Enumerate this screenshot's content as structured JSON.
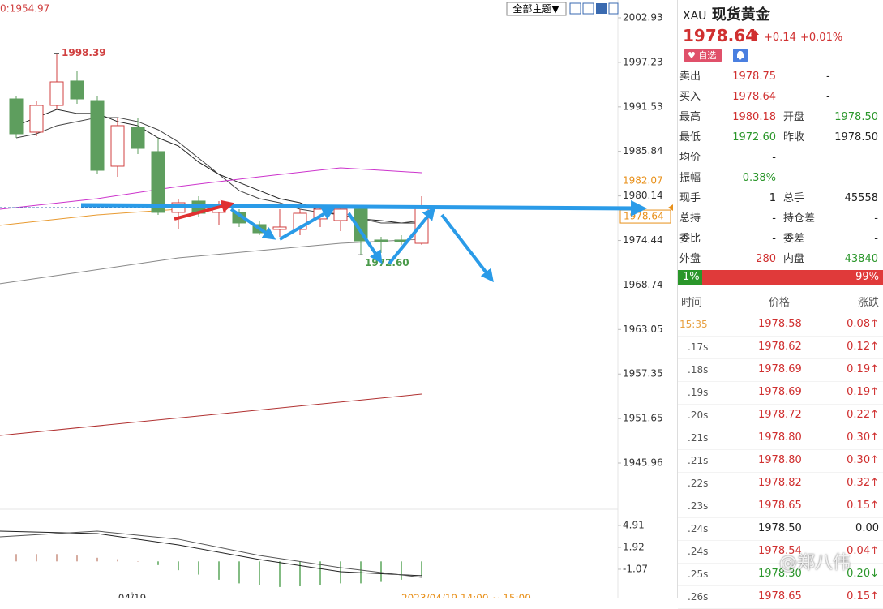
{
  "chart_data": [
    {
      "type": "candlestick",
      "legend_text": "0:1954.97",
      "x": [
        0,
        1,
        2,
        3,
        4,
        5,
        6,
        7,
        8,
        9,
        10,
        11,
        12,
        13,
        14,
        15,
        16,
        17,
        18,
        19,
        20
      ],
      "open": [
        1992.55,
        1988.3,
        1991.72,
        1994.84,
        1992.34,
        1983.94,
        1988.92,
        1985.81,
        1978.03,
        1979.48,
        1978.03,
        1978.03,
        1976.47,
        1975.85,
        1975.85,
        1977.2,
        1976.99,
        1978.44,
        1974.5,
        1974.5,
        1974.08
      ],
      "high": [
        1992.97,
        1992.24,
        1998.39,
        1996.08,
        1992.97,
        1990.17,
        1990.17,
        1987.57,
        1979.79,
        1980.1,
        1979.48,
        1978.44,
        1976.99,
        1978.44,
        1978.44,
        1978.75,
        1978.75,
        1978.75,
        1974.91,
        1975.12,
        1980.1
      ],
      "low": [
        1987.57,
        1987.78,
        1991.2,
        1991.93,
        1982.9,
        1982.59,
        1985.5,
        1977.71,
        1975.95,
        1977.4,
        1976.37,
        1976.16,
        1975.12,
        1974.91,
        1975.12,
        1976.16,
        1975.64,
        1972.6,
        1972.84,
        1973.88,
        1973.88
      ],
      "close": [
        1988.09,
        1991.72,
        1994.73,
        1992.55,
        1983.42,
        1989.13,
        1986.22,
        1978.03,
        1979.27,
        1977.92,
        1979.06,
        1976.68,
        1975.43,
        1976.16,
        1977.92,
        1978.44,
        1978.44,
        1974.39,
        1974.29,
        1974.29,
        1978.64
      ],
      "up_color": "#d04040",
      "down_color": "#5e9e5e",
      "lines": [
        {
          "color": "#222222",
          "x": [
            0,
            1,
            2,
            3,
            4,
            5,
            6,
            7,
            8,
            9,
            10,
            11,
            12,
            13,
            14,
            15,
            16,
            17,
            18,
            19,
            20
          ],
          "values": [
            1989.13,
            1990.17,
            1991.2,
            1990.69,
            1990.69,
            1989.65,
            1989.13,
            1987.57,
            1986.53,
            1984.46,
            1982.9,
            1981.86,
            1980.82,
            1979.79,
            1979.27,
            1978.23,
            1977.71,
            1977.19,
            1976.99,
            1976.68,
            1976.68
          ]
        },
        {
          "color": "#444444",
          "x": [
            0,
            1,
            2,
            3,
            4,
            5,
            6,
            7,
            8,
            9,
            10,
            11,
            12,
            13,
            14,
            15,
            16,
            17,
            18,
            19,
            20
          ],
          "values": [
            1987.57,
            1988.09,
            1989.13,
            1989.65,
            1990.17,
            1990.17,
            1989.65,
            1988.61,
            1987.05,
            1984.98,
            1982.9,
            1980.82,
            1979.79,
            1979.27,
            1978.44,
            1978.03,
            1977.71,
            1977.2,
            1976.68,
            1976.68,
            1976.99
          ]
        },
        {
          "color": "#cc33cc",
          "x": [
            -0.8,
            4,
            8,
            12,
            16,
            20
          ],
          "values": [
            1978.44,
            1979.79,
            1981.35,
            1982.59,
            1983.73,
            1983.11
          ]
        },
        {
          "color": "#888888",
          "x": [
            -0.8,
            8,
            16,
            20
          ],
          "values": [
            1968.9,
            1972.21,
            1974.08,
            1974.6
          ]
        },
        {
          "color": "#b03030",
          "x": [
            -0.8,
            20
          ],
          "values": [
            1949.49,
            1954.78
          ]
        },
        {
          "color": "#e89a30",
          "x": [
            -0.8,
            4,
            8
          ],
          "values": [
            1976.37,
            1977.71,
            1978.44
          ]
        }
      ],
      "annotations": [
        {
          "x": 2,
          "value": 1998.39,
          "color": "#d04040"
        },
        {
          "x": 17,
          "value": 1972.6,
          "label": "1972.60",
          "color": "#4a9a4a"
        }
      ],
      "price_tags": [
        {
          "value": 1982.07,
          "color": "#e8901a"
        },
        {
          "value": 1978.64,
          "color": "#e8901a"
        }
      ],
      "xlim": [
        -0.8,
        29.68
      ],
      "ylim": [
        1940.15,
        2005.21
      ],
      "yticks": [
        2002.93,
        1997.23,
        1991.53,
        1985.84,
        1980.14,
        1974.44,
        1968.74,
        1963.05,
        1957.35,
        1951.65,
        1945.96
      ]
    },
    {
      "type": "bar",
      "x": [
        0,
        1,
        2,
        3,
        4,
        5,
        6,
        7,
        8,
        9,
        10,
        11,
        12,
        13,
        14,
        15,
        16,
        17,
        18,
        19,
        20
      ],
      "values": [
        1.0,
        1.0,
        1.0,
        0.8,
        0.5,
        0.3,
        0.0,
        -0.5,
        -1.2,
        -1.8,
        -2.5,
        -3.0,
        -3.2,
        -3.5,
        -3.4,
        -3.2,
        -3.0,
        -3.0,
        -2.8,
        -2.5,
        -2.0
      ],
      "up_color": "#c89080",
      "down_color": "#5aa55a",
      "lines": [
        {
          "color": "#222222",
          "x": [
            -0.8,
            4,
            8,
            12,
            16,
            20
          ],
          "values": [
            4.13,
            3.8,
            2.25,
            0.26,
            -1.4,
            -1.95
          ]
        },
        {
          "color": "#555555",
          "x": [
            -0.8,
            4,
            8,
            12,
            16,
            20
          ],
          "values": [
            3.36,
            4.13,
            3.03,
            0.81,
            -0.85,
            -2.18
          ]
        }
      ],
      "xlim": [
        -0.8,
        29.68
      ],
      "ylim": [
        -5.06,
        6.9
      ],
      "yticks": [
        4.91,
        1.92,
        -1.07
      ],
      "xticks": [
        {
          "value": 5.72,
          "label": "04/19"
        }
      ],
      "time_range": "2023/04/19 14:00 ~ 15:00"
    }
  ],
  "toolbar": {
    "theme_button": "全部主题▼"
  },
  "quote": {
    "symbol": "XAU",
    "name": "现货黄金",
    "price": "1978.64",
    "change": "+0.14",
    "change_pct": "+0.01%",
    "watch": "自选"
  },
  "quote_table": [
    [
      "卖出",
      "1978.75",
      "-"
    ],
    [
      "买入",
      "1978.64",
      "-"
    ],
    [
      "最高",
      "1980.18",
      "开盘",
      "1978.50"
    ],
    [
      "最低",
      "1972.60",
      "昨收",
      "1978.50"
    ],
    [
      "均价",
      "-"
    ],
    [
      "振幅",
      "0.38%"
    ],
    [
      "现手",
      "1",
      "总手",
      "45558"
    ],
    [
      "总持",
      "-",
      "持仓差",
      "-"
    ],
    [
      "委比",
      "-",
      "委差",
      "-"
    ],
    [
      "外盘",
      "280",
      "内盘",
      "43840"
    ]
  ],
  "ratio_bar": [
    "1%",
    "99%"
  ],
  "trades": {
    "header": [
      "时间",
      "价格",
      "涨跌"
    ],
    "rows": [
      [
        "15:35",
        "1978.58",
        "0.08↑"
      ],
      [
        ".17s",
        "1978.62",
        "0.12↑"
      ],
      [
        ".18s",
        "1978.69",
        "0.19↑"
      ],
      [
        ".19s",
        "1978.69",
        "0.19↑"
      ],
      [
        ".20s",
        "1978.72",
        "0.22↑"
      ],
      [
        ".21s",
        "1978.80",
        "0.30↑"
      ],
      [
        ".21s",
        "1978.80",
        "0.30↑"
      ],
      [
        ".22s",
        "1978.82",
        "0.32↑"
      ],
      [
        ".23s",
        "1978.65",
        "0.15↑"
      ],
      [
        ".24s",
        "1978.50",
        "0.00"
      ],
      [
        ".24s",
        "1978.54",
        "0.04↑"
      ],
      [
        ".25s",
        "1978.30",
        "0.20↓"
      ],
      [
        ".26s",
        "1978.65",
        "0.15↑"
      ]
    ]
  },
  "watermark": "@郑八伟"
}
